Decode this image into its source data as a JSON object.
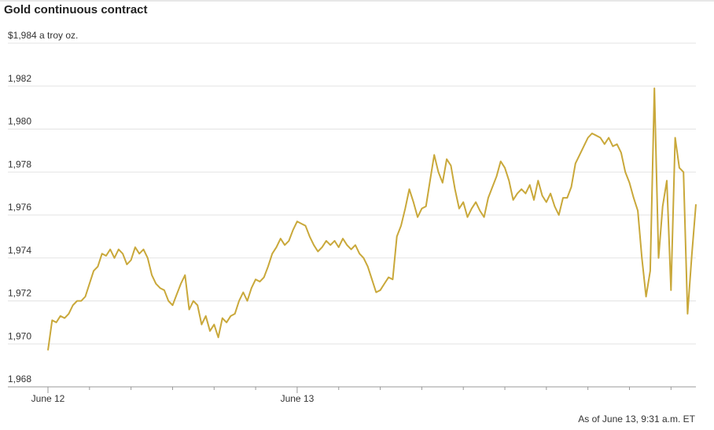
{
  "chart_data": {
    "type": "line",
    "title": "Gold continuous contract",
    "source": "As of June 13, 9:31 a.m. ET",
    "color": "#c9a83a",
    "grid": true,
    "xlim": [
      0,
      156
    ],
    "xticks": [
      {
        "value": 0,
        "label": "June 12"
      },
      {
        "value": 60,
        "label": "June 13"
      }
    ],
    "minor_xticks": [
      10,
      20,
      30,
      40,
      50,
      70,
      80,
      90,
      100,
      110,
      120,
      130,
      140,
      150
    ],
    "ylim": [
      1968,
      1984
    ],
    "yticks": [
      {
        "value": 1968,
        "label": "1,968"
      },
      {
        "value": 1970,
        "label": "1,970"
      },
      {
        "value": 1972,
        "label": "1,972"
      },
      {
        "value": 1974,
        "label": "1,974"
      },
      {
        "value": 1976,
        "label": "1,976"
      },
      {
        "value": 1978,
        "label": "1,978"
      },
      {
        "value": 1980,
        "label": "1,980"
      },
      {
        "value": 1982,
        "label": "1,982"
      },
      {
        "value": 1984,
        "label": "$1,984 a troy oz."
      }
    ],
    "values": [
      1969.7,
      1971.1,
      1971.0,
      1971.3,
      1971.2,
      1971.4,
      1971.8,
      1972.0,
      1972.0,
      1972.2,
      1972.8,
      1973.4,
      1973.6,
      1974.2,
      1974.1,
      1974.4,
      1974.0,
      1974.4,
      1974.2,
      1973.7,
      1973.9,
      1974.5,
      1974.2,
      1974.4,
      1974.0,
      1973.2,
      1972.8,
      1972.6,
      1972.5,
      1972.0,
      1971.8,
      1972.3,
      1972.8,
      1973.2,
      1971.6,
      1972.0,
      1971.8,
      1970.9,
      1971.3,
      1970.6,
      1970.9,
      1970.3,
      1971.2,
      1971.0,
      1971.3,
      1971.4,
      1972.0,
      1972.4,
      1972.0,
      1972.6,
      1973.0,
      1972.9,
      1973.1,
      1973.6,
      1974.2,
      1974.5,
      1974.9,
      1974.6,
      1974.8,
      1975.3,
      1975.7,
      1975.6,
      1975.5,
      1975.0,
      1974.6,
      1974.3,
      1974.5,
      1974.8,
      1974.6,
      1974.8,
      1974.5,
      1974.9,
      1974.6,
      1974.4,
      1974.6,
      1974.2,
      1974.0,
      1973.6,
      1973.0,
      1972.4,
      1972.5,
      1972.8,
      1973.1,
      1973.0,
      1975.0,
      1975.5,
      1976.3,
      1977.2,
      1976.6,
      1975.9,
      1976.3,
      1976.4,
      1977.6,
      1978.8,
      1978.0,
      1977.5,
      1978.6,
      1978.3,
      1977.2,
      1976.3,
      1976.6,
      1975.9,
      1976.3,
      1976.6,
      1976.2,
      1975.9,
      1976.8,
      1977.3,
      1977.8,
      1978.5,
      1978.2,
      1977.6,
      1976.7,
      1977.0,
      1977.2,
      1977.0,
      1977.4,
      1976.7,
      1977.6,
      1976.9,
      1976.6,
      1977.0,
      1976.4,
      1976.0,
      1976.8,
      1976.8,
      1977.3,
      1978.4,
      1978.8,
      1979.2,
      1979.6,
      1979.8,
      1979.7,
      1979.6,
      1979.3,
      1979.6,
      1979.2,
      1979.3,
      1978.9,
      1978.0,
      1977.5,
      1976.8,
      1976.2,
      1974.0,
      1972.2,
      1973.4,
      1981.9,
      1974.0,
      1976.4,
      1977.6,
      1972.5,
      1979.6,
      1978.2,
      1978.0,
      1971.4,
      1974.1,
      1976.5
    ]
  }
}
